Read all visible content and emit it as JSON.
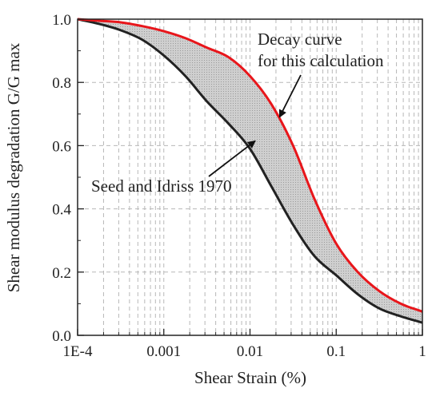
{
  "chart_data": {
    "type": "line",
    "xlabel": "Shear Strain (%)",
    "ylabel": "Shear modulus degradation G/G max",
    "xscale": "log",
    "xlim": [
      0.0001,
      1
    ],
    "ylim": [
      0,
      1.0
    ],
    "x_ticks": [
      0.0001,
      0.001,
      0.01,
      0.1,
      1
    ],
    "x_tick_labels": [
      "1E-4",
      "0.001",
      "0.01",
      "0.1",
      "1"
    ],
    "y_ticks": [
      0,
      0.2,
      0.4,
      0.6,
      0.8,
      1.0
    ],
    "y_tick_labels": [
      "0.0",
      "0.2",
      "0.4",
      "0.6",
      "0.8",
      "1.0"
    ],
    "grid": true,
    "grid_style": "dashed",
    "band_fill": "between series",
    "series": [
      {
        "key": "upper",
        "color": "#e8161b",
        "x": [
          0.0001,
          0.000178,
          0.000316,
          0.000562,
          0.001,
          0.00178,
          0.00316,
          0.00562,
          0.01,
          0.0178,
          0.0316,
          0.0562,
          0.1,
          0.178,
          0.316,
          0.562,
          1
        ],
        "y": [
          1.0,
          0.995,
          0.99,
          0.978,
          0.962,
          0.94,
          0.91,
          0.88,
          0.82,
          0.73,
          0.6,
          0.43,
          0.29,
          0.2,
          0.14,
          0.1,
          0.075
        ]
      },
      {
        "key": "lower",
        "color": "#222222",
        "x": [
          0.0001,
          0.000178,
          0.000316,
          0.000562,
          0.001,
          0.00178,
          0.00316,
          0.00562,
          0.01,
          0.0178,
          0.0316,
          0.0562,
          0.1,
          0.178,
          0.316,
          0.562,
          1
        ],
        "y": [
          1.0,
          0.985,
          0.965,
          0.935,
          0.885,
          0.82,
          0.74,
          0.67,
          0.59,
          0.47,
          0.35,
          0.25,
          0.19,
          0.13,
          0.085,
          0.06,
          0.04
        ]
      }
    ],
    "annotations": [
      {
        "key": "decay",
        "lines": [
          "Decay curve",
          "for this calculation"
        ],
        "arrow_to": {
          "x": 0.022,
          "y": 0.69
        }
      },
      {
        "key": "seed",
        "lines": [
          "Seed and Idriss 1970"
        ],
        "arrow_to": {
          "x": 0.0115,
          "y": 0.615
        }
      }
    ]
  }
}
